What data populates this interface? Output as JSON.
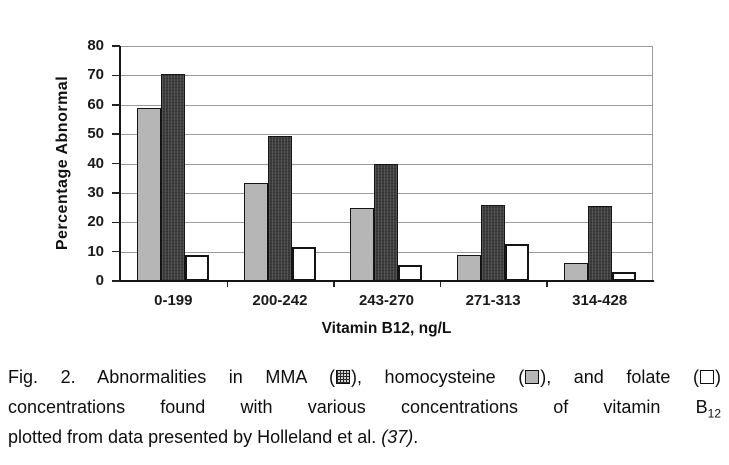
{
  "chart_data": {
    "type": "bar",
    "title": "",
    "xlabel": "Vitamin B12, ng/L",
    "ylabel": "Percentage Abnormal",
    "ylim": [
      0,
      80
    ],
    "ytick_step": 10,
    "grid": "horizontal",
    "legend_position": "in-caption",
    "categories": [
      "0-199",
      "200-242",
      "243-270",
      "271-313",
      "314-428"
    ],
    "series": [
      {
        "name": "homocysteine",
        "style": "gray",
        "color": "#b6b6b6",
        "values": [
          59,
          33.5,
          25,
          9,
          6
        ]
      },
      {
        "name": "MMA",
        "style": "dark-pattern",
        "color": "#3e3e3e",
        "values": [
          70.5,
          49.5,
          40,
          26,
          25.5
        ]
      },
      {
        "name": "folate",
        "style": "white",
        "color": "#ffffff",
        "values": [
          9,
          11.5,
          5.5,
          12.5,
          3
        ]
      }
    ],
    "colors": {
      "grid": "#9a9a9a",
      "axis": "#151515",
      "text": "#1a1a1a"
    }
  },
  "figure": {
    "caption": {
      "line1_pre": "Fig. 2. Abnormalities in MMA (",
      "line1_mid1": "), homocysteine (",
      "line1_mid2": "), and folate (",
      "line1_end": ")",
      "line2_text": "concentrations found with various concentrations of vitamin B",
      "line2_sub": "12",
      "line3_text": "plotted from data presented by Holleland et al. ",
      "line3_ref": "(37)",
      "line3_end": "."
    }
  }
}
